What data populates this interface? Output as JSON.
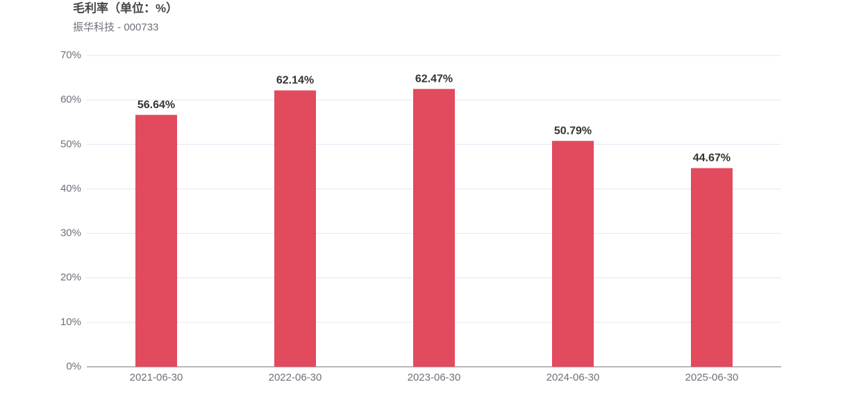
{
  "chart_data": {
    "type": "bar",
    "title": "毛利率（单位：%）",
    "subtitle": "振华科技 - 000733",
    "categories": [
      "2021-06-30",
      "2022-06-30",
      "2023-06-30",
      "2024-06-30",
      "2025-06-30"
    ],
    "values": [
      56.64,
      62.14,
      62.47,
      50.79,
      44.67
    ],
    "value_labels": [
      "56.64%",
      "62.14%",
      "62.47%",
      "50.79%",
      "44.67%"
    ],
    "color": "#e24a5e",
    "ylim": [
      0,
      70
    ],
    "yticks": [
      {
        "value": 0,
        "label": "0%"
      },
      {
        "value": 10,
        "label": "10%"
      },
      {
        "value": 20,
        "label": "20%"
      },
      {
        "value": 30,
        "label": "30%"
      },
      {
        "value": 40,
        "label": "40%"
      },
      {
        "value": 50,
        "label": "50%"
      },
      {
        "value": 60,
        "label": "60%"
      },
      {
        "value": 70,
        "label": "70%"
      }
    ],
    "grid": true
  }
}
